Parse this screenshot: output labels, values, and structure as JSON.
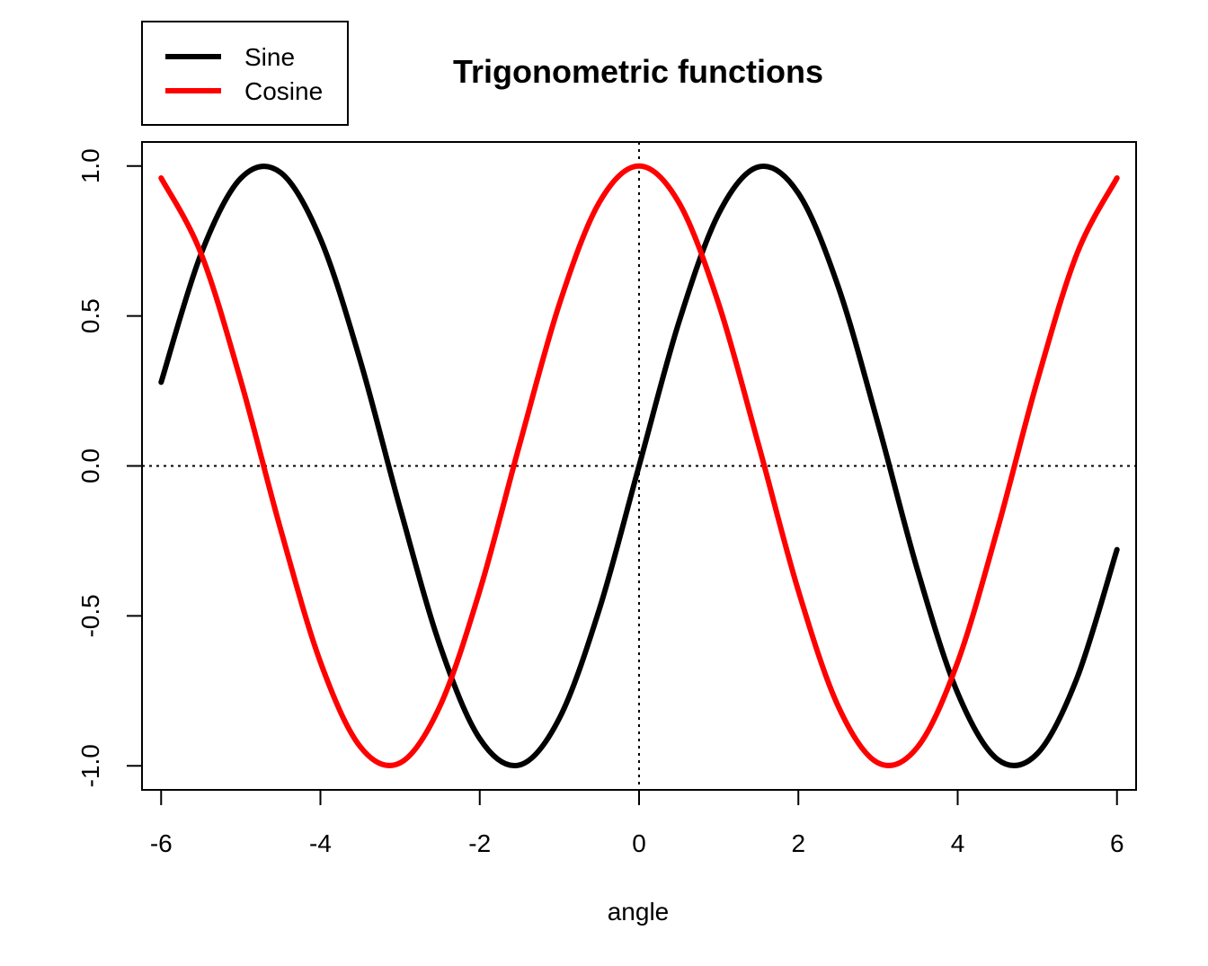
{
  "chart_data": {
    "type": "line",
    "title": "Trigonometric functions",
    "xlabel": "angle",
    "ylabel": "",
    "xlim": [
      -6.24,
      6.24
    ],
    "ylim": [
      -1.08,
      1.08
    ],
    "xticks": [
      -6,
      -4,
      -2,
      0,
      2,
      4,
      6
    ],
    "xtick_labels": [
      "-6",
      "-4",
      "-2",
      "0",
      "2",
      "4",
      "6"
    ],
    "yticks": [
      -1.0,
      -0.5,
      0.0,
      0.5,
      1.0
    ],
    "ytick_labels": [
      "-1.0",
      "-0.5",
      "0.0",
      "0.5",
      "1.0"
    ],
    "reference_lines": {
      "h": 0,
      "v": 0,
      "style": "dotted"
    },
    "x": [
      -6.0,
      -5.5,
      -5.0,
      -4.5,
      -4.0,
      -3.5,
      -3.0,
      -2.5,
      -2.0,
      -1.5,
      -1.0,
      -0.5,
      0.0,
      0.5,
      1.0,
      1.5,
      2.0,
      2.5,
      3.0,
      3.5,
      4.0,
      4.5,
      5.0,
      5.5,
      6.0
    ],
    "series": [
      {
        "name": "Sine",
        "color": "#000000",
        "values": [
          0.279,
          0.706,
          0.959,
          0.978,
          0.757,
          0.351,
          -0.141,
          -0.598,
          -0.909,
          -0.997,
          -0.841,
          -0.479,
          0.0,
          0.479,
          0.841,
          0.997,
          0.909,
          0.598,
          0.141,
          -0.351,
          -0.757,
          -0.978,
          -0.959,
          -0.706,
          -0.279
        ]
      },
      {
        "name": "Cosine",
        "color": "#ff0000",
        "values": [
          0.96,
          0.709,
          0.284,
          -0.211,
          -0.654,
          -0.936,
          -0.99,
          -0.801,
          -0.416,
          0.071,
          0.54,
          0.878,
          1.0,
          0.878,
          0.54,
          0.071,
          -0.416,
          -0.801,
          -0.99,
          -0.936,
          -0.654,
          -0.211,
          0.284,
          0.709,
          0.96
        ]
      }
    ],
    "legend": {
      "position": "top-left",
      "entries": [
        {
          "label": "Sine",
          "color": "#000000"
        },
        {
          "label": "Cosine",
          "color": "#ff0000"
        }
      ]
    }
  }
}
